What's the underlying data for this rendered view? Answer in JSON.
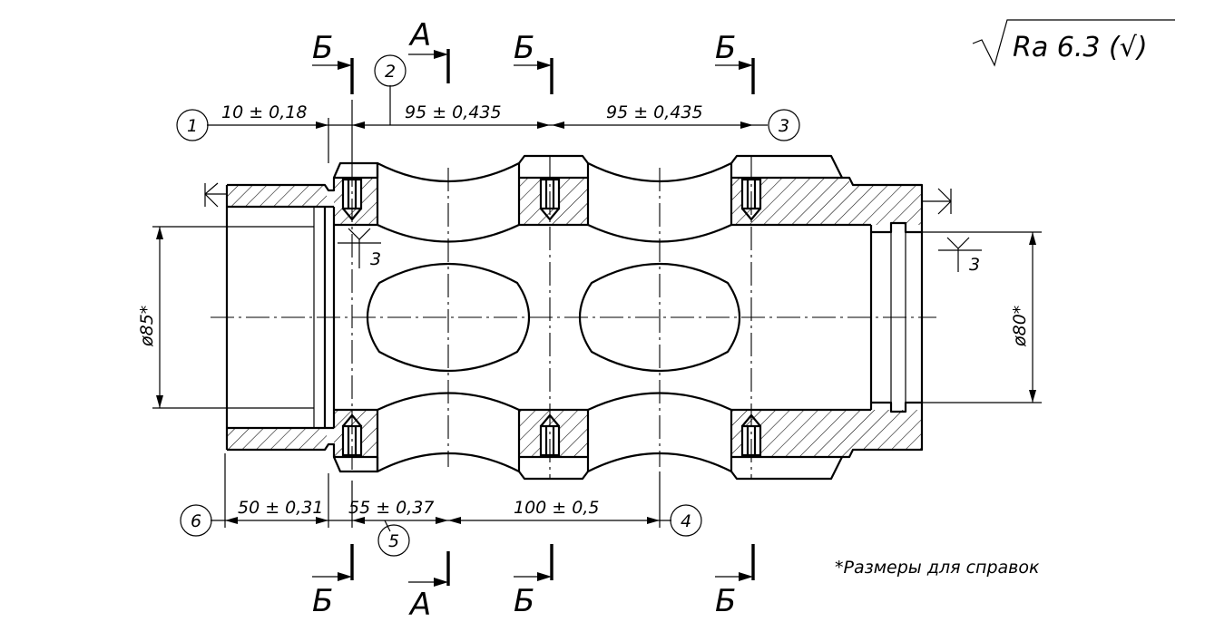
{
  "roughness": {
    "symbol_text": "Ra 6.3 (√)"
  },
  "dimensions": {
    "top_1": "10 ± 0,18",
    "top_2": "95 ± 0,435",
    "top_3": "95 ± 0,435",
    "bottom_1": "50 ± 0,31",
    "bottom_2": "55 ± 0,37",
    "bottom_3": "100 ± 0,5",
    "diameter_left": "ø85*",
    "diameter_right": "ø80*"
  },
  "balloons": [
    "1",
    "2",
    "3",
    "4",
    "5",
    "6"
  ],
  "sections": {
    "a": "А",
    "b": "Б"
  },
  "weld_marks": {
    "left": "3",
    "right": "3"
  },
  "note": "*Размеры для справок"
}
